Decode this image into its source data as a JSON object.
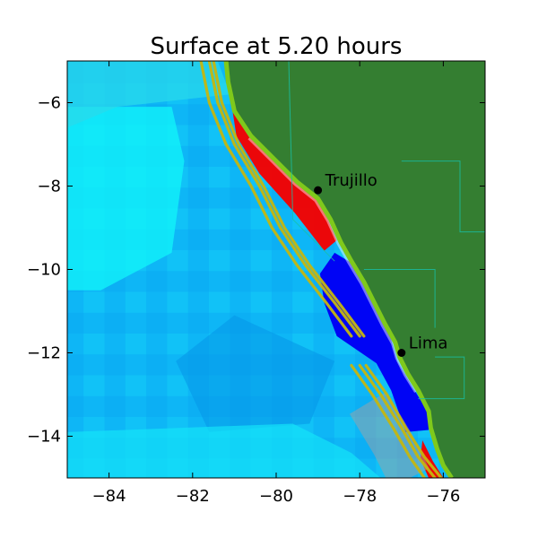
{
  "chart_data": {
    "type": "heatmap",
    "title": "Surface at 5.20 hours",
    "xlabel": "",
    "ylabel": "",
    "xlim": [
      -85,
      -75
    ],
    "ylim": [
      -15,
      -5
    ],
    "xticks": [
      -84,
      -82,
      -80,
      -78,
      -76
    ],
    "yticks": [
      -6,
      -8,
      -10,
      -12,
      -14
    ],
    "xtick_labels": [
      "−84",
      "−82",
      "−80",
      "−78",
      "−76"
    ],
    "ytick_labels": [
      "−6",
      "−8",
      "−10",
      "−12",
      "−14"
    ],
    "grid": false,
    "legend": "none",
    "places": [
      {
        "name": "Trujillo",
        "lon": -79.0,
        "lat": -8.1
      },
      {
        "name": "Lima",
        "lon": -77.0,
        "lat": -12.0
      }
    ],
    "coastline": [
      [
        -81.2,
        -5.0
      ],
      [
        -81.15,
        -5.5
      ],
      [
        -81.0,
        -6.2
      ],
      [
        -80.6,
        -6.8
      ],
      [
        -80.0,
        -7.4
      ],
      [
        -79.5,
        -7.9
      ],
      [
        -79.0,
        -8.3
      ],
      [
        -78.7,
        -8.8
      ],
      [
        -78.45,
        -9.35
      ],
      [
        -78.2,
        -9.8
      ],
      [
        -77.9,
        -10.3
      ],
      [
        -77.65,
        -10.8
      ],
      [
        -77.4,
        -11.3
      ],
      [
        -77.15,
        -11.75
      ],
      [
        -77.05,
        -12.1
      ],
      [
        -76.85,
        -12.5
      ],
      [
        -76.6,
        -12.9
      ],
      [
        -76.35,
        -13.4
      ],
      [
        -76.3,
        -13.8
      ],
      [
        -76.15,
        -14.3
      ],
      [
        -76.0,
        -14.7
      ],
      [
        -75.8,
        -15.0
      ]
    ],
    "fault_lines": [
      [
        [
          -81.6,
          -5.0
        ],
        [
          -81.4,
          -6.0
        ],
        [
          -81.0,
          -7.0
        ],
        [
          -80.4,
          -8.0
        ],
        [
          -79.9,
          -9.0
        ],
        [
          -79.3,
          -9.9
        ],
        [
          -78.6,
          -10.8
        ],
        [
          -78.0,
          -11.6
        ]
      ],
      [
        [
          -81.8,
          -5.0
        ],
        [
          -81.6,
          -6.0
        ],
        [
          -81.2,
          -7.0
        ],
        [
          -80.6,
          -8.0
        ],
        [
          -80.1,
          -9.0
        ],
        [
          -79.5,
          -9.9
        ],
        [
          -78.8,
          -10.8
        ],
        [
          -78.2,
          -11.6
        ]
      ],
      [
        [
          -81.5,
          -5.0
        ],
        [
          -81.3,
          -6.0
        ],
        [
          -80.9,
          -7.0
        ],
        [
          -80.3,
          -8.0
        ],
        [
          -79.8,
          -9.0
        ],
        [
          -79.2,
          -9.9
        ],
        [
          -78.5,
          -10.8
        ],
        [
          -77.9,
          -11.6
        ]
      ],
      [
        [
          -78.0,
          -12.3
        ],
        [
          -77.5,
          -13.0
        ],
        [
          -77.0,
          -13.8
        ],
        [
          -76.6,
          -14.5
        ],
        [
          -76.2,
          -15.0
        ]
      ],
      [
        [
          -78.2,
          -12.3
        ],
        [
          -77.7,
          -13.0
        ],
        [
          -77.2,
          -13.8
        ],
        [
          -76.8,
          -14.5
        ],
        [
          -76.45,
          -15.0
        ]
      ],
      [
        [
          -77.85,
          -12.3
        ],
        [
          -77.35,
          -13.0
        ],
        [
          -76.9,
          -13.8
        ],
        [
          -76.45,
          -14.5
        ],
        [
          -76.05,
          -15.0
        ]
      ]
    ],
    "colors": {
      "land": "#347e31",
      "deep_water": "#08aef8",
      "light_water": "#12f5f9",
      "shelf_water": "#2ad9ea",
      "negative_surface": "#0000f5",
      "positive_surface": "#f50000",
      "fault": "#c5b60f",
      "coast_edge": "#7fc91b",
      "boundary": "#18c0a8"
    }
  }
}
